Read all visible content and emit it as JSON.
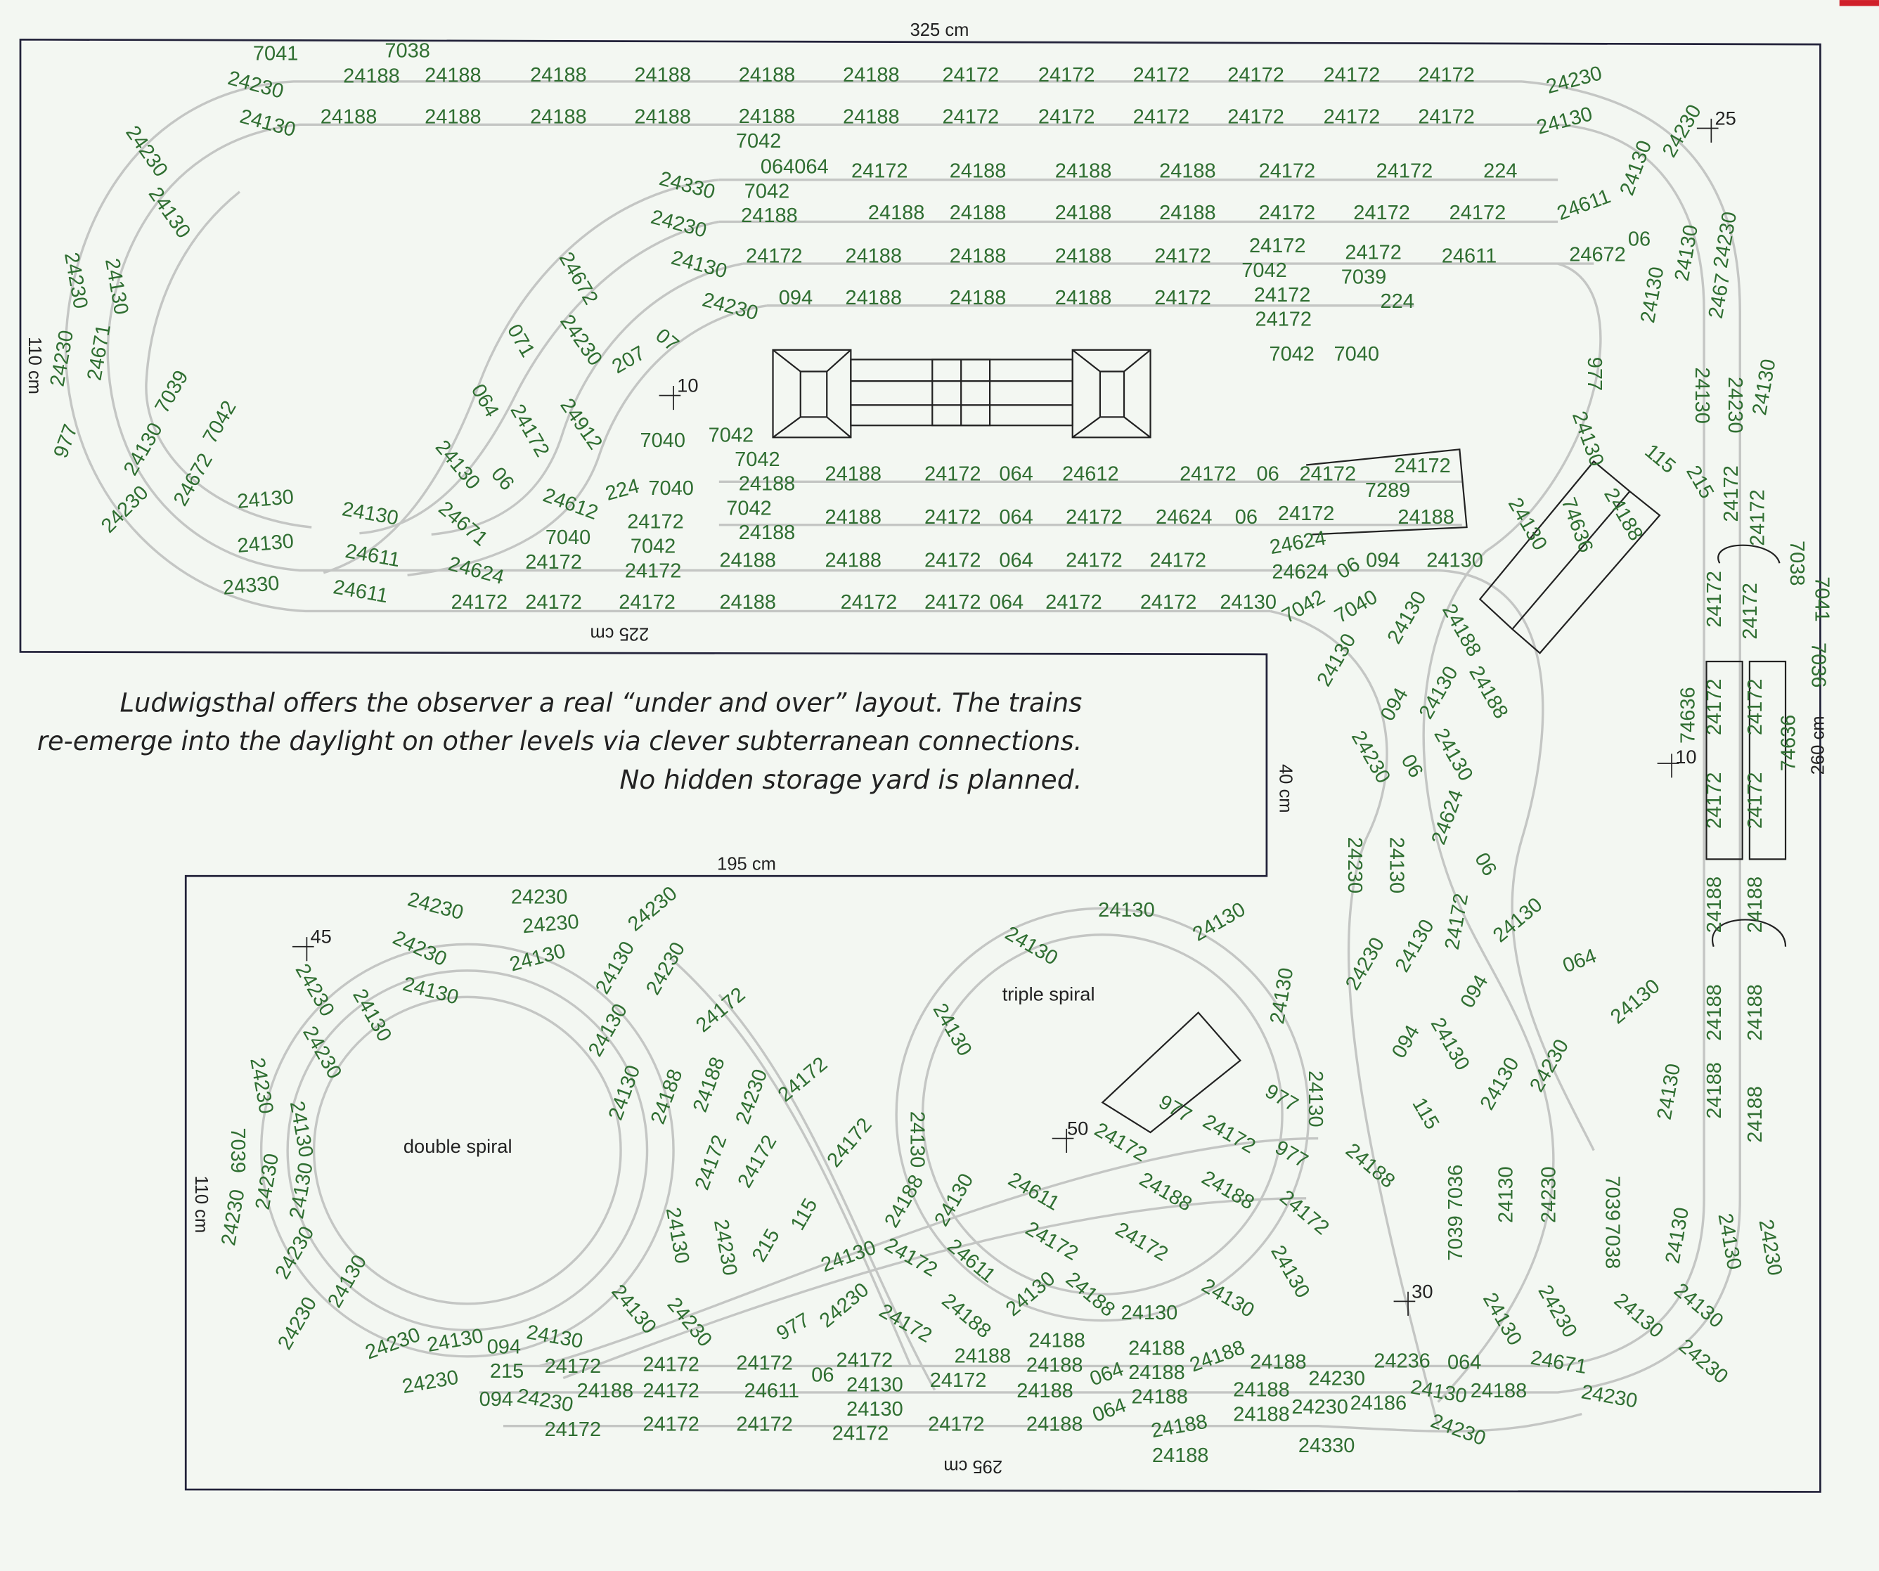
{
  "caption": {
    "line1": "Ludwigsthal offers the observer a real “under and over” layout. The trains",
    "line2": "re-emerge into the daylight on other levels via clever subterranean connections.",
    "line3": "No hidden storage yard is planned."
  },
  "dimensions": {
    "top": "325 cm",
    "left_upper": "110 cm",
    "inner_upper": "225 cm",
    "step": "40 cm",
    "inner_lower": "195 cm",
    "left_lower": "110 cm",
    "bottom": "295 cm",
    "right": "260 cm"
  },
  "area_labels": {
    "double_spiral": "double spiral",
    "triple_spiral": "triple spiral"
  },
  "colors": {
    "track_label": "#2f6e31",
    "track": "#c4c6c4",
    "board": "#22223a",
    "background": "#f3f7f2",
    "accent": "#d0202a"
  },
  "track_rows": [
    [
      "24188",
      "24188",
      "24188",
      "24188",
      "24188",
      "24188",
      "24172",
      "24172",
      "24172",
      "24172",
      "24172",
      "24172"
    ],
    [
      "24188",
      "24188",
      "24188",
      "24188",
      "24188",
      "24188",
      "24172",
      "24172",
      "24172",
      "24172",
      "24172",
      "24172"
    ],
    [
      "064064",
      "24172",
      "24188",
      "24188",
      "24188",
      "24172",
      "24172",
      "224"
    ],
    [
      "24188",
      "24188",
      "24188",
      "24188",
      "24188",
      "24172",
      "24172",
      "24172"
    ],
    [
      "24172",
      "24188",
      "24188",
      "24188",
      "24172",
      "24172",
      "24172",
      "24611"
    ],
    [
      "094",
      "24188",
      "24188",
      "24188",
      "24172",
      "24172",
      "224"
    ],
    [
      "24188",
      "24172",
      "064",
      "24612",
      "24172",
      "06",
      "24172",
      "24172"
    ],
    [
      "24188",
      "24172",
      "064",
      "24172",
      "24624",
      "06",
      "24172",
      "24188"
    ],
    [
      "24188",
      "24188",
      "24172",
      "064",
      "24172",
      "24172",
      "24624",
      "094",
      "24130"
    ],
    [
      "24172",
      "24172",
      "24172",
      "24188",
      "24172",
      "24172",
      "064",
      "24172",
      "24172",
      "24130"
    ],
    [
      "24172",
      "24172",
      "24172",
      "24172",
      "24172",
      "24188",
      "24188",
      "24188",
      "24236",
      "064"
    ],
    [
      "094",
      "24188",
      "24172",
      "24611",
      "24130",
      "24188",
      "24188",
      "24188",
      "24230",
      "24188"
    ],
    [
      "24172",
      "24172",
      "24172",
      "24172",
      "24172",
      "24188",
      "24188"
    ]
  ],
  "track_labels": [
    "7041",
    "7038",
    "24230",
    "24130",
    "24230",
    "24130",
    "24230",
    "24130",
    "24671",
    "24230",
    "977",
    "7039",
    "24130",
    "24672",
    "7042",
    "24230",
    "24130",
    "24130",
    "24330",
    "24130",
    "24611",
    "24611",
    "24624",
    "24671",
    "24612",
    "24130",
    "06",
    "064",
    "071",
    "24172",
    "24672",
    "24230",
    "207",
    "07",
    "24912",
    "24330",
    "24230",
    "24130",
    "24230",
    "7042",
    "7042",
    "7040",
    "7042",
    "7042",
    "7040",
    "24188",
    "7042",
    "24188",
    "24172",
    "224",
    "7040",
    "7042",
    "24172",
    "24172",
    "24230",
    "24130",
    "24611",
    "24130",
    "24230",
    "06",
    "24672",
    "24130",
    "24230",
    "24130",
    "2467",
    "7042",
    "7039",
    "24172",
    "7042",
    "7040",
    "977",
    "24130",
    "24130",
    "24230",
    "24130",
    "115",
    "215",
    "24172",
    "24172",
    "7289",
    "24624",
    "06",
    "7042",
    "7040",
    "24130",
    "24130",
    "24130",
    "24188",
    "74636",
    "7038",
    "7041",
    "7036",
    "24172",
    "24172",
    "24172",
    "24172",
    "74636",
    "74636",
    "24172",
    "24172",
    "24188",
    "24188",
    "24188",
    "24188",
    "24188",
    "24188",
    "24188",
    "24188",
    "094",
    "24130",
    "24230",
    "06",
    "24130",
    "24624",
    "24230",
    "24130",
    "06",
    "24172",
    "24130",
    "24230",
    "24130",
    "064",
    "094",
    "24130",
    "094",
    "24130",
    "24230",
    "24130",
    "115",
    "24188",
    "24130",
    "7039 7036",
    "24130",
    "24230",
    "7039",
    "7038",
    "24130",
    "24130",
    "24230",
    "24130",
    "24230",
    "24130",
    "24130",
    "24230",
    "24671",
    "24230",
    "24130",
    "24230",
    "24330",
    "24230",
    "24230",
    "24230",
    "24230",
    "24130",
    "24130",
    "24230",
    "24130",
    "24230",
    "24130",
    "24172",
    "24230",
    "24130",
    "24230",
    "24230",
    "24130",
    "7039",
    "24230",
    "24230",
    "24130",
    "24230",
    "24130",
    "24230",
    "24230",
    "24130",
    "094",
    "24130",
    "24230",
    "215",
    "24230",
    "24130",
    "24230",
    "24130",
    "24230",
    "24130",
    "24188",
    "24188",
    "24230",
    "24172",
    "24172",
    "215",
    "115",
    "24172",
    "24172",
    "24130",
    "24188",
    "24130",
    "24130",
    "24230",
    "977",
    "24172",
    "24611",
    "24188",
    "24130",
    "24188",
    "24130",
    "24188",
    "24188",
    "24172",
    "24611",
    "24172",
    "24172",
    "24188",
    "24188",
    "24130",
    "24172",
    "24130",
    "977",
    "24172",
    "977",
    "977",
    "24130",
    "24172",
    "24130",
    "24130",
    "24130",
    "24130",
    "24130",
    "06",
    "24130",
    "064",
    "064",
    "24188",
    "24188",
    "24188",
    "24188",
    "24230",
    "24186"
  ],
  "markers": [
    "10",
    "25",
    "10",
    "45",
    "50",
    "30"
  ]
}
